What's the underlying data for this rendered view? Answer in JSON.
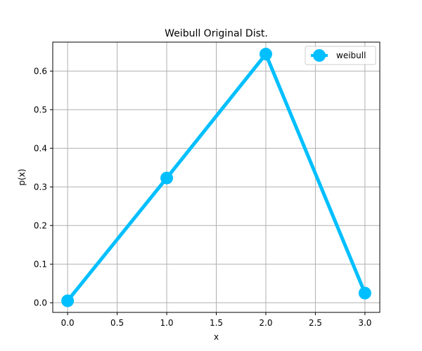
{
  "chart_data": {
    "type": "line",
    "title": "Weibull Original Dist.",
    "xlabel": "x",
    "ylabel": "p(x)",
    "xlim": [
      -0.15,
      3.15
    ],
    "ylim": [
      -0.025,
      0.675
    ],
    "xticks": [
      0.0,
      0.5,
      1.0,
      1.5,
      2.0,
      2.5,
      3.0
    ],
    "xtick_labels": [
      "0.0",
      "0.5",
      "1.0",
      "1.5",
      "2.0",
      "2.5",
      "3.0"
    ],
    "yticks": [
      0.0,
      0.1,
      0.2,
      0.3,
      0.4,
      0.5,
      0.6
    ],
    "ytick_labels": [
      "0.0",
      "0.1",
      "0.2",
      "0.3",
      "0.4",
      "0.5",
      "0.6"
    ],
    "grid": true,
    "legend_position": "top-right",
    "series": [
      {
        "name": "weibull",
        "color": "#00bfff",
        "marker": "circle",
        "x": [
          0,
          1,
          2,
          3
        ],
        "y": [
          0.005,
          0.323,
          0.644,
          0.025
        ]
      }
    ]
  }
}
